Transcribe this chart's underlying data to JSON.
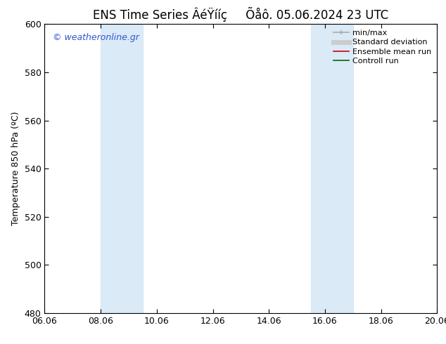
{
  "title": "ENS Time Series ÂéŸííç     Õåô. 05.06.2024 23 UTC",
  "ylabel": "Temperature 850 hPa (ºC)",
  "ylim": [
    480,
    600
  ],
  "yticks": [
    480,
    500,
    520,
    540,
    560,
    580,
    600
  ],
  "xtick_labels": [
    "06.06",
    "08.06",
    "10.06",
    "12.06",
    "14.06",
    "16.06",
    "18.06",
    "20.06"
  ],
  "xtick_positions": [
    0,
    2,
    4,
    6,
    8,
    10,
    12,
    14
  ],
  "xlim": [
    0,
    14
  ],
  "shaded_bands": [
    {
      "xstart": 2.0,
      "xend": 3.5,
      "color": "#daeaf7"
    },
    {
      "xstart": 9.5,
      "xend": 11.0,
      "color": "#daeaf7"
    }
  ],
  "watermark_text": "© weatheronline.gr",
  "watermark_color": "#3355cc",
  "background_color": "#ffffff",
  "legend_entries": [
    {
      "label": "min/max",
      "color": "#aaaaaa",
      "lw": 1.2
    },
    {
      "label": "Standard deviation",
      "color": "#cccccc",
      "lw": 5
    },
    {
      "label": "Ensemble mean run",
      "color": "#cc0000",
      "lw": 1.2
    },
    {
      "label": "Controll run",
      "color": "#006600",
      "lw": 1.2
    }
  ],
  "title_fontsize": 12,
  "ylabel_fontsize": 9,
  "tick_fontsize": 9,
  "legend_fontsize": 8,
  "watermark_fontsize": 9
}
